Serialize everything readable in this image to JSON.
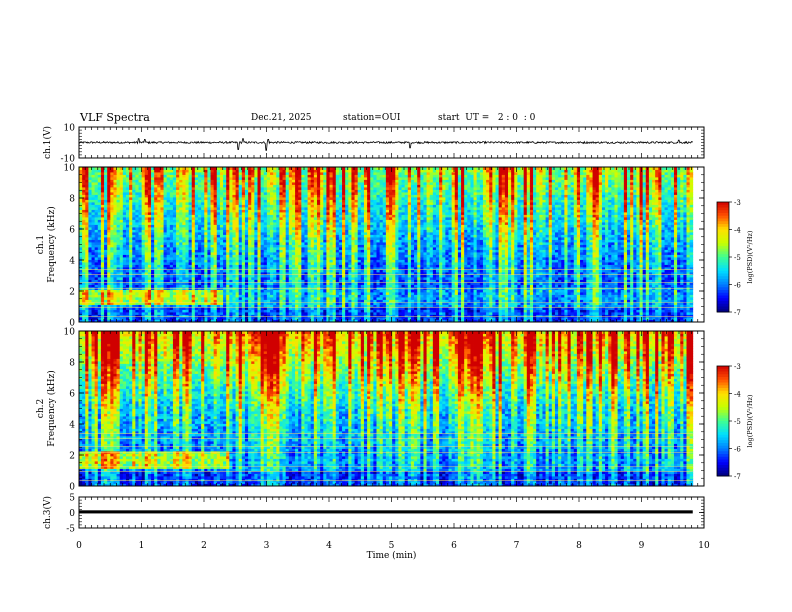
{
  "header": {
    "title": "VLF Spectra",
    "date": "Dec.21, 2025",
    "station": "station=OUI",
    "start_ut": "start  UT =   2 : 0  : 0"
  },
  "colors": {
    "background": "#ffffff",
    "axis": "#000000",
    "waveform": "#000000",
    "colormap": [
      "#00007a",
      "#0000ff",
      "#0080ff",
      "#00e0ff",
      "#40ff90",
      "#c8ff00",
      "#ffe000",
      "#ff5000",
      "#d00000",
      "#ffffff"
    ]
  },
  "chart_data": [
    {
      "type": "line",
      "name": "ch1-waveform",
      "ylabel": "ch.1(V)",
      "ylim": [
        -10,
        10
      ],
      "yticks": [
        10,
        -10
      ],
      "xlim": [
        0,
        10
      ],
      "baseline": 0,
      "noise_amplitude": 0.6,
      "spikes": [
        {
          "t": 0.95,
          "v": 2.5
        },
        {
          "t": 1.05,
          "v": 2.0
        },
        {
          "t": 2.55,
          "v": -4.5
        },
        {
          "t": 2.62,
          "v": 2.5
        },
        {
          "t": 3.0,
          "v": -5.0
        },
        {
          "t": 3.03,
          "v": 2.0
        },
        {
          "t": 5.3,
          "v": -3.5
        },
        {
          "t": 9.6,
          "v": 1.5
        }
      ]
    },
    {
      "type": "heatmap",
      "name": "ch1-spectrogram",
      "ylabel": "Frequency (kHz)",
      "channel_label": "ch.1",
      "xlim": [
        0,
        9.82
      ],
      "ylim": [
        0,
        10
      ],
      "yticks": [
        0,
        2,
        4,
        6,
        8,
        10
      ],
      "colorbar": {
        "label": "log(PSD)(V²/Hz)",
        "range": [
          -7,
          -3
        ],
        "ticks": [
          -3,
          -4,
          -5,
          -6,
          -7
        ]
      },
      "base_level": {
        "low_band_khz": [
          0.9,
          2.2
        ],
        "low_band_db": -6.0,
        "mid_db": -6.3,
        "high_db": -5.2
      },
      "early_band": {
        "t_end": 2.3,
        "f_range_khz": [
          1.2,
          2.1
        ],
        "level": -4.8
      },
      "impulse_rate": 0.55
    },
    {
      "type": "heatmap",
      "name": "ch2-spectrogram",
      "ylabel": "Frequency (kHz)",
      "channel_label": "ch.2",
      "xlim": [
        0,
        9.82
      ],
      "ylim": [
        0,
        10
      ],
      "yticks": [
        0,
        2,
        4,
        6,
        8,
        10
      ],
      "colorbar": {
        "label": "log(PSD)(V²/Hz)",
        "range": [
          -7,
          -3
        ],
        "ticks": [
          -3,
          -4,
          -5,
          -6,
          -7
        ]
      },
      "base_level": {
        "low_band_khz": [
          0.9,
          2.2
        ],
        "low_band_db": -6.1,
        "mid_db": -6.1,
        "high_db": -4.6
      },
      "early_band": {
        "t_end": 2.4,
        "f_range_khz": [
          1.2,
          2.3
        ],
        "level": -4.8
      },
      "impulse_rate": 0.7
    },
    {
      "type": "line",
      "name": "ch3-trace",
      "ylabel": "ch.3(V)",
      "ylim": [
        -5,
        5
      ],
      "yticks": [
        5,
        0,
        -5
      ],
      "xlim": [
        0,
        10
      ],
      "baseline": 0.2,
      "thickness_v": 1.0
    }
  ],
  "x_axis": {
    "xlabel": "Time (min)",
    "ticks": [
      "0",
      "1",
      "2",
      "3",
      "4",
      "5",
      "6",
      "7",
      "8",
      "9",
      "10"
    ]
  }
}
